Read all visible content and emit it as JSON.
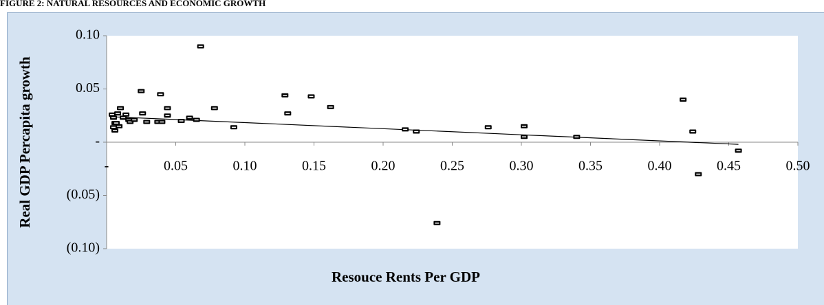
{
  "chart_data": {
    "type": "scatter",
    "title": "FIGURE 2: NATURAL RESOURCES AND ECONOMIC GROWTH",
    "x_label": "Resouce Rents Per GDP",
    "y_label": "Real GDP Percapita growth",
    "xlim": [
      0,
      0.5
    ],
    "ylim": [
      -0.1,
      0.1
    ],
    "xticks": [
      {
        "value": 0,
        "label": "-"
      },
      0.05,
      {
        "value": 0.1,
        "label": "0.10"
      },
      0.15,
      {
        "value": 0.2,
        "label": "0.20"
      },
      0.25,
      {
        "value": 0.3,
        "label": "0.30"
      },
      0.35,
      {
        "value": 0.4,
        "label": "0.40"
      },
      0.45,
      {
        "value": 0.5,
        "label": "0.50"
      }
    ],
    "yticks": [
      {
        "value": -0.1,
        "label": "(0.10)"
      },
      {
        "value": -0.05,
        "label": "(0.05)"
      },
      {
        "value": 0,
        "label": "-"
      },
      0.05,
      {
        "value": 0.1,
        "label": "0.10"
      }
    ],
    "grid": false,
    "marker_color": "#000000",
    "trendline_color": "#000000",
    "x": [
      0.004,
      0.005,
      0.006,
      0.005,
      0.006,
      0.007,
      0.008,
      0.009,
      0.01,
      0.012,
      0.014,
      0.016,
      0.017,
      0.02,
      0.025,
      0.026,
      0.029,
      0.037,
      0.039,
      0.04,
      0.044,
      0.044,
      0.054,
      0.06,
      0.065,
      0.068,
      0.078,
      0.092,
      0.129,
      0.131,
      0.148,
      0.162,
      0.216,
      0.224,
      0.239,
      0.276,
      0.302,
      0.302,
      0.34,
      0.417,
      0.424,
      0.428,
      0.457
    ],
    "y": [
      0.026,
      0.023,
      0.018,
      0.014,
      0.011,
      0.018,
      0.027,
      0.015,
      0.032,
      0.023,
      0.026,
      0.021,
      0.019,
      0.021,
      0.048,
      0.027,
      0.019,
      0.019,
      0.045,
      0.019,
      0.032,
      0.025,
      0.02,
      0.023,
      0.021,
      0.09,
      0.032,
      0.014,
      0.044,
      0.027,
      0.043,
      0.033,
      0.012,
      0.01,
      -0.076,
      0.014,
      0.015,
      0.005,
      0.005,
      0.04,
      0.01,
      -0.03,
      -0.008
    ],
    "trendline": {
      "x": [
        0.002,
        0.457
      ],
      "y": [
        0.024,
        -0.002
      ]
    }
  }
}
